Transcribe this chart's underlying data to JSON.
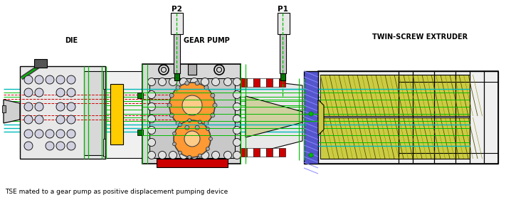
{
  "bg_color": "#ffffff",
  "label_die": "DIE",
  "label_gear_pump": "GEAR PUMP",
  "label_tse": "TWIN-SCREW EXTRUDER",
  "label_p1": "P1",
  "label_p2": "P2",
  "caption": "TSE mated to a gear pump as positive displacement pumping device",
  "fig_width": 7.18,
  "fig_height": 2.81,
  "dpi": 100,
  "col_black": "#000000",
  "col_green": "#00bb00",
  "col_dkgreen": "#007700",
  "col_cyan": "#00bbbb",
  "col_red": "#cc0000",
  "col_blue": "#2222cc",
  "col_yellow": "#dddd00",
  "col_orange": "#ff9933",
  "col_dgrey": "#444444",
  "col_lgrey": "#cccccc",
  "col_mgrey": "#888888",
  "col_white": "#ffffff",
  "col_ylw_screw": "#cccc44"
}
